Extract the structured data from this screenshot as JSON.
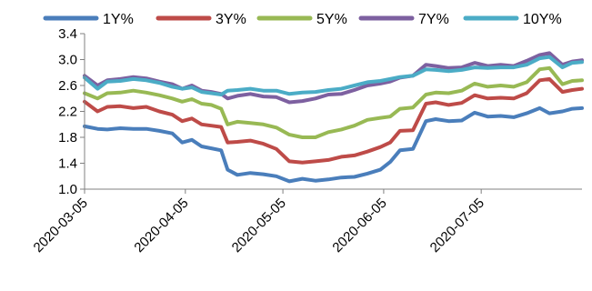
{
  "chart_data": {
    "type": "line",
    "x_ticks": [
      "2020-03-05",
      "2020-04-05",
      "2020-05-05",
      "2020-06-05",
      "2020-07-05"
    ],
    "x_range": [
      "2020-03-05",
      "2020-08-05"
    ],
    "ylim": [
      1.0,
      3.4
    ],
    "y_ticks": [
      "1.0",
      "1.4",
      "1.8",
      "2.2",
      "2.6",
      "3.0",
      "3.4"
    ],
    "grid": false,
    "legend_position": "top",
    "series": [
      {
        "name": "1Y%",
        "color": "#4A7EBB",
        "points": [
          [
            "2020-03-05",
            1.97
          ],
          [
            "2020-03-09",
            1.93
          ],
          [
            "2020-03-12",
            1.92
          ],
          [
            "2020-03-16",
            1.94
          ],
          [
            "2020-03-20",
            1.93
          ],
          [
            "2020-03-24",
            1.93
          ],
          [
            "2020-03-28",
            1.9
          ],
          [
            "2020-04-01",
            1.86
          ],
          [
            "2020-04-04",
            1.72
          ],
          [
            "2020-04-07",
            1.76
          ],
          [
            "2020-04-10",
            1.66
          ],
          [
            "2020-04-13",
            1.63
          ],
          [
            "2020-04-16",
            1.6
          ],
          [
            "2020-04-18",
            1.3
          ],
          [
            "2020-04-21",
            1.22
          ],
          [
            "2020-04-25",
            1.25
          ],
          [
            "2020-04-29",
            1.23
          ],
          [
            "2020-05-03",
            1.2
          ],
          [
            "2020-05-07",
            1.12
          ],
          [
            "2020-05-11",
            1.16
          ],
          [
            "2020-05-15",
            1.13
          ],
          [
            "2020-05-19",
            1.15
          ],
          [
            "2020-05-23",
            1.18
          ],
          [
            "2020-05-27",
            1.19
          ],
          [
            "2020-05-31",
            1.24
          ],
          [
            "2020-06-04",
            1.3
          ],
          [
            "2020-06-07",
            1.42
          ],
          [
            "2020-06-10",
            1.6
          ],
          [
            "2020-06-14",
            1.62
          ],
          [
            "2020-06-18",
            2.05
          ],
          [
            "2020-06-21",
            2.08
          ],
          [
            "2020-06-25",
            2.05
          ],
          [
            "2020-06-29",
            2.06
          ],
          [
            "2020-07-03",
            2.18
          ],
          [
            "2020-07-07",
            2.12
          ],
          [
            "2020-07-11",
            2.13
          ],
          [
            "2020-07-15",
            2.11
          ],
          [
            "2020-07-19",
            2.17
          ],
          [
            "2020-07-23",
            2.25
          ],
          [
            "2020-07-26",
            2.17
          ],
          [
            "2020-07-30",
            2.2
          ],
          [
            "2020-08-02",
            2.24
          ],
          [
            "2020-08-05",
            2.25
          ]
        ]
      },
      {
        "name": "3Y%",
        "color": "#BE4B48",
        "points": [
          [
            "2020-03-05",
            2.35
          ],
          [
            "2020-03-09",
            2.2
          ],
          [
            "2020-03-12",
            2.27
          ],
          [
            "2020-03-16",
            2.28
          ],
          [
            "2020-03-20",
            2.25
          ],
          [
            "2020-03-24",
            2.27
          ],
          [
            "2020-03-28",
            2.2
          ],
          [
            "2020-04-01",
            2.15
          ],
          [
            "2020-04-04",
            2.05
          ],
          [
            "2020-04-07",
            2.09
          ],
          [
            "2020-04-10",
            2.0
          ],
          [
            "2020-04-13",
            1.98
          ],
          [
            "2020-04-16",
            1.96
          ],
          [
            "2020-04-18",
            1.72
          ],
          [
            "2020-04-21",
            1.73
          ],
          [
            "2020-04-25",
            1.75
          ],
          [
            "2020-04-29",
            1.7
          ],
          [
            "2020-05-03",
            1.62
          ],
          [
            "2020-05-07",
            1.43
          ],
          [
            "2020-05-11",
            1.41
          ],
          [
            "2020-05-15",
            1.43
          ],
          [
            "2020-05-19",
            1.45
          ],
          [
            "2020-05-23",
            1.5
          ],
          [
            "2020-05-27",
            1.52
          ],
          [
            "2020-05-31",
            1.58
          ],
          [
            "2020-06-04",
            1.65
          ],
          [
            "2020-06-07",
            1.72
          ],
          [
            "2020-06-10",
            1.9
          ],
          [
            "2020-06-14",
            1.91
          ],
          [
            "2020-06-18",
            2.32
          ],
          [
            "2020-06-21",
            2.34
          ],
          [
            "2020-06-25",
            2.3
          ],
          [
            "2020-06-29",
            2.33
          ],
          [
            "2020-07-03",
            2.45
          ],
          [
            "2020-07-07",
            2.4
          ],
          [
            "2020-07-11",
            2.41
          ],
          [
            "2020-07-15",
            2.4
          ],
          [
            "2020-07-19",
            2.48
          ],
          [
            "2020-07-23",
            2.68
          ],
          [
            "2020-07-26",
            2.7
          ],
          [
            "2020-07-30",
            2.5
          ],
          [
            "2020-08-02",
            2.53
          ],
          [
            "2020-08-05",
            2.55
          ]
        ]
      },
      {
        "name": "5Y%",
        "color": "#98B954",
        "points": [
          [
            "2020-03-05",
            2.48
          ],
          [
            "2020-03-09",
            2.4
          ],
          [
            "2020-03-12",
            2.48
          ],
          [
            "2020-03-16",
            2.49
          ],
          [
            "2020-03-20",
            2.52
          ],
          [
            "2020-03-24",
            2.49
          ],
          [
            "2020-03-28",
            2.45
          ],
          [
            "2020-04-01",
            2.4
          ],
          [
            "2020-04-04",
            2.35
          ],
          [
            "2020-04-07",
            2.39
          ],
          [
            "2020-04-10",
            2.32
          ],
          [
            "2020-04-13",
            2.3
          ],
          [
            "2020-04-16",
            2.24
          ],
          [
            "2020-04-18",
            2.0
          ],
          [
            "2020-04-21",
            2.04
          ],
          [
            "2020-04-25",
            2.02
          ],
          [
            "2020-04-29",
            2.0
          ],
          [
            "2020-05-03",
            1.95
          ],
          [
            "2020-05-07",
            1.84
          ],
          [
            "2020-05-11",
            1.8
          ],
          [
            "2020-05-15",
            1.8
          ],
          [
            "2020-05-19",
            1.88
          ],
          [
            "2020-05-23",
            1.92
          ],
          [
            "2020-05-27",
            1.98
          ],
          [
            "2020-05-31",
            2.07
          ],
          [
            "2020-06-04",
            2.1
          ],
          [
            "2020-06-07",
            2.12
          ],
          [
            "2020-06-10",
            2.24
          ],
          [
            "2020-06-14",
            2.26
          ],
          [
            "2020-06-18",
            2.46
          ],
          [
            "2020-06-21",
            2.49
          ],
          [
            "2020-06-25",
            2.48
          ],
          [
            "2020-06-29",
            2.52
          ],
          [
            "2020-07-03",
            2.63
          ],
          [
            "2020-07-07",
            2.58
          ],
          [
            "2020-07-11",
            2.6
          ],
          [
            "2020-07-15",
            2.58
          ],
          [
            "2020-07-19",
            2.65
          ],
          [
            "2020-07-23",
            2.85
          ],
          [
            "2020-07-26",
            2.87
          ],
          [
            "2020-07-30",
            2.62
          ],
          [
            "2020-08-02",
            2.67
          ],
          [
            "2020-08-05",
            2.68
          ]
        ]
      },
      {
        "name": "7Y%",
        "color": "#7D60A0",
        "points": [
          [
            "2020-03-05",
            2.75
          ],
          [
            "2020-03-09",
            2.6
          ],
          [
            "2020-03-12",
            2.68
          ],
          [
            "2020-03-16",
            2.7
          ],
          [
            "2020-03-20",
            2.73
          ],
          [
            "2020-03-24",
            2.71
          ],
          [
            "2020-03-28",
            2.66
          ],
          [
            "2020-04-01",
            2.62
          ],
          [
            "2020-04-04",
            2.55
          ],
          [
            "2020-04-07",
            2.6
          ],
          [
            "2020-04-10",
            2.52
          ],
          [
            "2020-04-13",
            2.5
          ],
          [
            "2020-04-16",
            2.47
          ],
          [
            "2020-04-18",
            2.4
          ],
          [
            "2020-04-21",
            2.44
          ],
          [
            "2020-04-25",
            2.47
          ],
          [
            "2020-04-29",
            2.43
          ],
          [
            "2020-05-03",
            2.42
          ],
          [
            "2020-05-07",
            2.34
          ],
          [
            "2020-05-11",
            2.36
          ],
          [
            "2020-05-15",
            2.4
          ],
          [
            "2020-05-19",
            2.46
          ],
          [
            "2020-05-23",
            2.47
          ],
          [
            "2020-05-27",
            2.53
          ],
          [
            "2020-05-31",
            2.6
          ],
          [
            "2020-06-04",
            2.63
          ],
          [
            "2020-06-07",
            2.66
          ],
          [
            "2020-06-10",
            2.72
          ],
          [
            "2020-06-14",
            2.75
          ],
          [
            "2020-06-18",
            2.92
          ],
          [
            "2020-06-21",
            2.9
          ],
          [
            "2020-06-25",
            2.87
          ],
          [
            "2020-06-29",
            2.88
          ],
          [
            "2020-07-03",
            2.95
          ],
          [
            "2020-07-07",
            2.9
          ],
          [
            "2020-07-11",
            2.92
          ],
          [
            "2020-07-15",
            2.9
          ],
          [
            "2020-07-19",
            2.98
          ],
          [
            "2020-07-23",
            3.07
          ],
          [
            "2020-07-26",
            3.1
          ],
          [
            "2020-07-30",
            2.92
          ],
          [
            "2020-08-02",
            2.97
          ],
          [
            "2020-08-05",
            2.99
          ]
        ]
      },
      {
        "name": "10Y%",
        "color": "#4BACC6",
        "points": [
          [
            "2020-03-05",
            2.72
          ],
          [
            "2020-03-09",
            2.55
          ],
          [
            "2020-03-12",
            2.66
          ],
          [
            "2020-03-16",
            2.67
          ],
          [
            "2020-03-20",
            2.7
          ],
          [
            "2020-03-24",
            2.68
          ],
          [
            "2020-03-28",
            2.64
          ],
          [
            "2020-04-01",
            2.58
          ],
          [
            "2020-04-04",
            2.55
          ],
          [
            "2020-04-07",
            2.57
          ],
          [
            "2020-04-10",
            2.5
          ],
          [
            "2020-04-13",
            2.48
          ],
          [
            "2020-04-16",
            2.46
          ],
          [
            "2020-04-18",
            2.52
          ],
          [
            "2020-04-21",
            2.53
          ],
          [
            "2020-04-25",
            2.55
          ],
          [
            "2020-04-29",
            2.52
          ],
          [
            "2020-05-03",
            2.52
          ],
          [
            "2020-05-07",
            2.47
          ],
          [
            "2020-05-11",
            2.49
          ],
          [
            "2020-05-15",
            2.5
          ],
          [
            "2020-05-19",
            2.53
          ],
          [
            "2020-05-23",
            2.55
          ],
          [
            "2020-05-27",
            2.6
          ],
          [
            "2020-05-31",
            2.65
          ],
          [
            "2020-06-04",
            2.67
          ],
          [
            "2020-06-07",
            2.7
          ],
          [
            "2020-06-10",
            2.73
          ],
          [
            "2020-06-14",
            2.75
          ],
          [
            "2020-06-18",
            2.85
          ],
          [
            "2020-06-21",
            2.84
          ],
          [
            "2020-06-25",
            2.82
          ],
          [
            "2020-06-29",
            2.84
          ],
          [
            "2020-07-03",
            2.88
          ],
          [
            "2020-07-07",
            2.87
          ],
          [
            "2020-07-11",
            2.88
          ],
          [
            "2020-07-15",
            2.88
          ],
          [
            "2020-07-19",
            2.92
          ],
          [
            "2020-07-23",
            3.02
          ],
          [
            "2020-07-26",
            3.04
          ],
          [
            "2020-07-30",
            2.88
          ],
          [
            "2020-08-02",
            2.95
          ],
          [
            "2020-08-05",
            2.96
          ]
        ]
      }
    ]
  }
}
